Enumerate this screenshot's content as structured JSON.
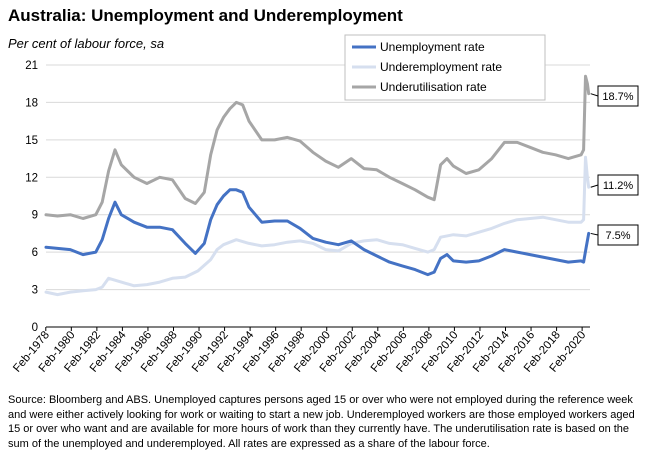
{
  "title": "Australia: Unemployment and Underemployment",
  "subtitle": "Per cent of labour force, sa",
  "source": "Source: Bloomberg and ABS. Unemployed captures persons aged 15 or over who were not employed during the reference week and were either actively looking for work or waiting to start a new job.  Underemployed workers are those employed workers aged 15 or over who want and are available for more hours of work than they currently have.  The underutilisation rate is based on the sum of the unemployed and underemployed. All rates are expressed as a share of the labour force.",
  "colors": {
    "unemployment": "#4472C4",
    "underemployment": "#D6DFEF",
    "underutilisation": "#A6A6A6"
  },
  "chart_data": {
    "type": "line",
    "title": "Australia: Unemployment and Underemployment",
    "ylabel": "Per cent of labour force, sa",
    "xlabel": "",
    "ylim": [
      0,
      21
    ],
    "yticks": [
      0,
      3,
      6,
      9,
      12,
      15,
      18,
      21
    ],
    "xlim": [
      1978.1,
      2020.7
    ],
    "xtick_labels": [
      "Feb-1978",
      "Feb-1980",
      "Feb-1982",
      "Feb-1984",
      "Feb-1986",
      "Feb-1988",
      "Feb-1990",
      "Feb-1992",
      "Feb-1994",
      "Feb-1996",
      "Feb-1998",
      "Feb-2000",
      "Feb-2002",
      "Feb-2004",
      "Feb-2006",
      "Feb-2008",
      "Feb-2010",
      "Feb-2012",
      "Feb-2014",
      "Feb-2016",
      "Feb-2018",
      "Feb-2020"
    ],
    "grid": true,
    "legend_position": "top-right",
    "series": [
      {
        "name": "Unemployment rate",
        "x": [
          1978.1,
          1979,
          1980,
          1981,
          1982,
          1982.5,
          1983,
          1983.5,
          1984,
          1985,
          1986,
          1987,
          1988,
          1989,
          1989.8,
          1990.5,
          1991,
          1991.5,
          1992,
          1992.5,
          1993,
          1993.5,
          1994,
          1995,
          1996,
          1997,
          1998,
          1999,
          2000,
          2001,
          2002,
          2003,
          2004,
          2005,
          2006,
          2007,
          2008,
          2008.5,
          2009,
          2009.5,
          2010,
          2011,
          2012,
          2013,
          2014,
          2015,
          2016,
          2017,
          2018,
          2019,
          2020,
          2020.2,
          2020.4,
          2020.6
        ],
        "y": [
          6.4,
          6.3,
          6.2,
          5.8,
          6.0,
          7.0,
          8.7,
          10.0,
          9.0,
          8.4,
          8.0,
          8.0,
          7.8,
          6.7,
          5.9,
          6.7,
          8.6,
          9.8,
          10.5,
          11.0,
          11.0,
          10.8,
          9.6,
          8.4,
          8.5,
          8.5,
          7.9,
          7.1,
          6.8,
          6.6,
          6.9,
          6.2,
          5.7,
          5.2,
          4.9,
          4.6,
          4.2,
          4.4,
          5.5,
          5.8,
          5.3,
          5.2,
          5.3,
          5.7,
          6.2,
          6.0,
          5.8,
          5.6,
          5.4,
          5.2,
          5.3,
          5.2,
          6.4,
          7.5
        ]
      },
      {
        "name": "Underemployment rate",
        "x": [
          1978.1,
          1979,
          1980,
          1981,
          1982,
          1982.5,
          1983,
          1984,
          1985,
          1986,
          1987,
          1988,
          1989,
          1990,
          1991,
          1991.5,
          1992,
          1992.5,
          1993,
          1994,
          1995,
          1996,
          1997,
          1998,
          1999,
          2000,
          2001,
          2002,
          2003,
          2004,
          2005,
          2006,
          2007,
          2008,
          2008.5,
          2009,
          2010,
          2011,
          2012,
          2013,
          2014,
          2015,
          2016,
          2017,
          2018,
          2019,
          2020,
          2020.2,
          2020.35,
          2020.5,
          2020.6
        ],
        "y": [
          2.8,
          2.6,
          2.8,
          2.9,
          3.0,
          3.2,
          3.9,
          3.6,
          3.3,
          3.4,
          3.6,
          3.9,
          4.0,
          4.5,
          5.4,
          6.2,
          6.6,
          6.8,
          7.0,
          6.7,
          6.5,
          6.6,
          6.8,
          6.9,
          6.7,
          6.2,
          6.1,
          6.7,
          6.9,
          7.0,
          6.7,
          6.6,
          6.3,
          6.0,
          6.2,
          7.2,
          7.4,
          7.3,
          7.6,
          7.9,
          8.3,
          8.6,
          8.7,
          8.8,
          8.6,
          8.4,
          8.4,
          8.6,
          13.6,
          12.0,
          11.2
        ]
      },
      {
        "name": "Underutilisation rate",
        "x": [
          1978.1,
          1979,
          1980,
          1981,
          1982,
          1982.5,
          1983,
          1983.5,
          1984,
          1985,
          1986,
          1987,
          1988,
          1989,
          1989.8,
          1990.5,
          1991,
          1991.5,
          1992,
          1992.5,
          1993,
          1993.5,
          1994,
          1995,
          1996,
          1997,
          1998,
          1999,
          2000,
          2001,
          2002,
          2003,
          2004,
          2005,
          2006,
          2007,
          2008,
          2008.5,
          2009,
          2009.5,
          2010,
          2011,
          2012,
          2013,
          2014,
          2015,
          2016,
          2017,
          2018,
          2019,
          2020,
          2020.2,
          2020.35,
          2020.5,
          2020.6
        ],
        "y": [
          9.0,
          8.9,
          9.0,
          8.7,
          9.0,
          10.0,
          12.5,
          14.2,
          13.0,
          12.0,
          11.5,
          12.0,
          11.8,
          10.3,
          9.9,
          10.8,
          13.8,
          15.8,
          16.8,
          17.5,
          18.0,
          17.8,
          16.5,
          15.0,
          15.0,
          15.2,
          14.9,
          14.0,
          13.3,
          12.8,
          13.5,
          12.7,
          12.6,
          12.0,
          11.5,
          11.0,
          10.4,
          10.2,
          13.0,
          13.5,
          12.9,
          12.3,
          12.6,
          13.5,
          14.8,
          14.8,
          14.4,
          14.0,
          13.8,
          13.5,
          13.8,
          14.2,
          20.1,
          19.5,
          18.7
        ]
      }
    ],
    "end_labels": [
      {
        "series": "Underutilisation rate",
        "text": "18.7%"
      },
      {
        "series": "Underemployment rate",
        "text": "11.2%"
      },
      {
        "series": "Unemployment rate",
        "text": "7.5%"
      }
    ]
  }
}
